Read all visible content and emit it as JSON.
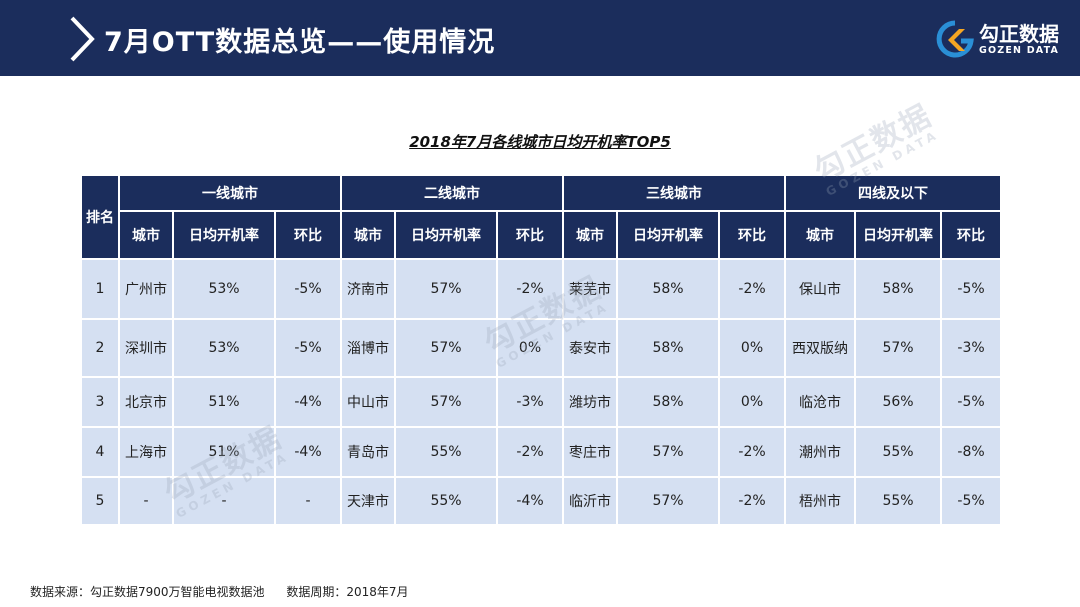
{
  "header": {
    "title": "7月OTT数据总览——使用情况",
    "logo_name": "勾正数据",
    "logo_en": "GOZEN DATA"
  },
  "table_title": "2018年7月各线城市日均开机率TOP5",
  "table": {
    "rank_header": "排名",
    "groups": [
      "一线城市",
      "二线城市",
      "三线城市",
      "四线及以下"
    ],
    "sub_headers": [
      "城市",
      "日均开机率",
      "环比"
    ],
    "rows": [
      {
        "rank": "1",
        "cells": [
          [
            "广州市",
            "53%",
            "-5%"
          ],
          [
            "济南市",
            "57%",
            "-2%"
          ],
          [
            "莱芜市",
            "58%",
            "-2%"
          ],
          [
            "保山市",
            "58%",
            "-5%"
          ]
        ]
      },
      {
        "rank": "2",
        "cells": [
          [
            "深圳市",
            "53%",
            "-5%"
          ],
          [
            "淄博市",
            "57%",
            "0%"
          ],
          [
            "泰安市",
            "58%",
            "0%"
          ],
          [
            "西双版纳",
            "57%",
            "-3%"
          ]
        ]
      },
      {
        "rank": "3",
        "cells": [
          [
            "北京市",
            "51%",
            "-4%"
          ],
          [
            "中山市",
            "57%",
            "-3%"
          ],
          [
            "潍坊市",
            "58%",
            "0%"
          ],
          [
            "临沧市",
            "56%",
            "-5%"
          ]
        ]
      },
      {
        "rank": "4",
        "cells": [
          [
            "上海市",
            "51%",
            "-4%"
          ],
          [
            "青岛市",
            "55%",
            "-2%"
          ],
          [
            "枣庄市",
            "57%",
            "-2%"
          ],
          [
            "潮州市",
            "55%",
            "-8%"
          ]
        ]
      },
      {
        "rank": "5",
        "cells": [
          [
            "-",
            "-",
            "-"
          ],
          [
            "天津市",
            "55%",
            "-4%"
          ],
          [
            "临沂市",
            "57%",
            "-2%"
          ],
          [
            "梧州市",
            "55%",
            "-5%"
          ]
        ]
      }
    ]
  },
  "watermark": {
    "cn": "勾正数据",
    "en": "GOZEN DATA"
  },
  "footer": {
    "source": "数据来源：勾正数据7900万智能电视数据池",
    "period": "数据周期：2018年7月"
  },
  "colors": {
    "header_bg": "#1b2d5c",
    "cell_bg": "#d5e0f2",
    "logo_accent": "#f5a623"
  }
}
